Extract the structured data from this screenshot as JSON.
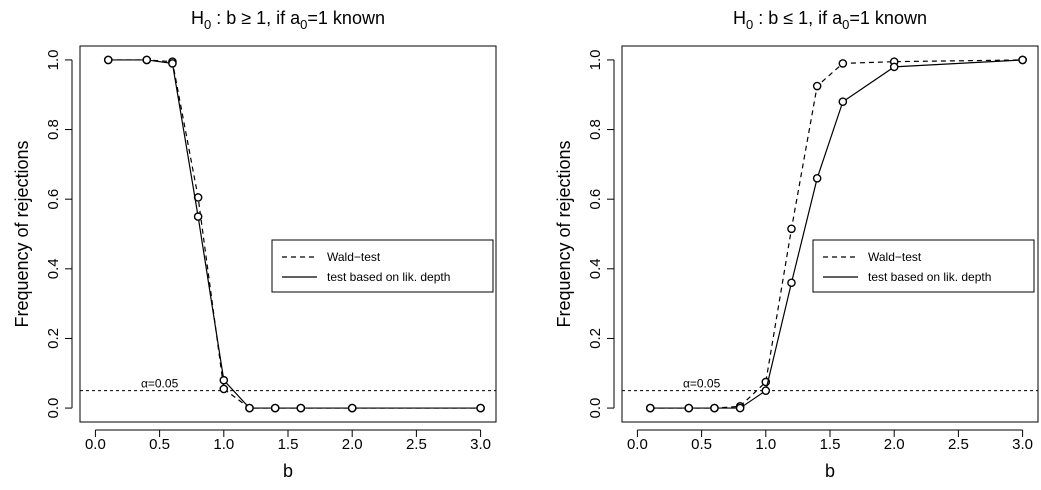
{
  "chart_data": [
    {
      "type": "line",
      "title_main": "H",
      "title_sub": "0",
      "title_rest": " : b ≥ 1, if a",
      "title_sub2": "0",
      "title_end": "=1 known",
      "xlabel": "b",
      "ylabel": "Frequency of rejections",
      "xlim": [
        0.0,
        3.0
      ],
      "ylim": [
        0.0,
        1.0
      ],
      "xticks": [
        "0.0",
        "0.5",
        "1.0",
        "1.5",
        "2.0",
        "2.5",
        "3.0"
      ],
      "yticks": [
        "0.0",
        "0.2",
        "0.4",
        "0.6",
        "0.8",
        "1.0"
      ],
      "grid": false,
      "legend_position": "right",
      "reference_line": {
        "y": 0.05,
        "label": "α=0.05"
      },
      "series": [
        {
          "name": "Wald−test",
          "style": "dashed",
          "x": [
            0.1,
            0.4,
            0.6,
            0.8,
            1.0,
            1.2,
            1.4,
            1.6,
            2.0,
            3.0
          ],
          "y": [
            1.0,
            1.0,
            0.995,
            0.605,
            0.055,
            0.0,
            0.0,
            0.0,
            0.0,
            0.0
          ]
        },
        {
          "name": " test based on lik. depth",
          "style": "solid",
          "x": [
            0.1,
            0.4,
            0.6,
            0.8,
            1.0,
            1.2,
            1.4,
            1.6,
            2.0,
            3.0
          ],
          "y": [
            1.0,
            1.0,
            0.99,
            0.55,
            0.08,
            0.0,
            0.0,
            0.0,
            0.0,
            0.0
          ]
        }
      ]
    },
    {
      "type": "line",
      "title_main": "H",
      "title_sub": "0",
      "title_rest": " : b ≤ 1, if a",
      "title_sub2": "0",
      "title_end": "=1 known",
      "xlabel": "b",
      "ylabel": "Frequency of rejections",
      "xlim": [
        0.0,
        3.0
      ],
      "ylim": [
        0.0,
        1.0
      ],
      "xticks": [
        "0.0",
        "0.5",
        "1.0",
        "1.5",
        "2.0",
        "2.5",
        "3.0"
      ],
      "yticks": [
        "0.0",
        "0.2",
        "0.4",
        "0.6",
        "0.8",
        "1.0"
      ],
      "grid": false,
      "legend_position": "right",
      "reference_line": {
        "y": 0.05,
        "label": "α=0.05"
      },
      "series": [
        {
          "name": "Wald−test",
          "style": "dashed",
          "x": [
            0.1,
            0.4,
            0.6,
            0.8,
            1.0,
            1.2,
            1.4,
            1.6,
            2.0,
            3.0
          ],
          "y": [
            0.0,
            0.0,
            0.0,
            0.005,
            0.075,
            0.515,
            0.925,
            0.99,
            0.995,
            1.0
          ]
        },
        {
          "name": " test based on lik. depth",
          "style": "solid",
          "x": [
            0.1,
            0.4,
            0.6,
            0.8,
            1.0,
            1.2,
            1.4,
            1.6,
            2.0,
            3.0
          ],
          "y": [
            0.0,
            0.0,
            0.0,
            0.0,
            0.05,
            0.36,
            0.66,
            0.88,
            0.98,
            1.0
          ]
        }
      ]
    }
  ]
}
